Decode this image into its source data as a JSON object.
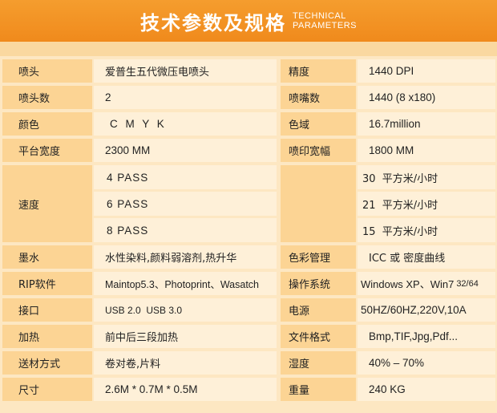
{
  "header": {
    "title_cn": "技术参数及规格",
    "title_en_line1": "TECHNICAL",
    "title_en_line2": "PARAMETERS"
  },
  "rows": {
    "r1": {
      "left_label": "喷头",
      "left_value": "爱普生五代微压电喷头",
      "right_label": "精度",
      "right_value": "1440 DPI"
    },
    "r2": {
      "left_label": "喷头数",
      "left_value": "2",
      "right_label": "喷嘴数",
      "right_value": "1440 (8 x180)"
    },
    "r3": {
      "left_label": "颜色",
      "left_value": "C M Y K",
      "right_label": "色域",
      "right_value": "16.7million"
    },
    "r4": {
      "left_label": "平台宽度",
      "left_value": "2300 MM",
      "right_label": "喷印宽幅",
      "right_value": "1800 MM"
    },
    "speed": {
      "label": "速度",
      "passes": [
        "4 PASS",
        "6 PASS",
        "8 PASS"
      ],
      "rates": [
        "30  平方米/小时",
        "21  平方米/小时",
        "15  平方米/小时"
      ]
    },
    "r8": {
      "left_label": "墨水",
      "left_value": "水性染料,颜料弱溶剂,热升华",
      "right_label": "色彩管理",
      "right_value": "ICC 或 密度曲线"
    },
    "r9": {
      "left_label": "RIP软件",
      "left_value": "Maintop5.3、Photoprint、Wasatch",
      "right_label": "操作系统",
      "right_value": "Windows XP、Win7",
      "right_value_suffix": "32/64"
    },
    "r10": {
      "left_label": "接口",
      "left_value": "USB 2.0  USB 3.0",
      "right_label": "电源",
      "right_value": "50HZ/60HZ,220V,10A"
    },
    "r11": {
      "left_label": "加热",
      "left_value": "前中后三段加热",
      "right_label": "文件格式",
      "right_value": "Bmp,TIF,Jpg,Pdf..."
    },
    "r12": {
      "left_label": "送材方式",
      "left_value": "卷对卷,片料",
      "right_label": "湿度",
      "right_value": "40% – 70%"
    },
    "r13": {
      "left_label": "尺寸",
      "left_value": "2.6M * 0.7M * 0.5M",
      "right_label": "重量",
      "right_value": "240 KG"
    }
  },
  "colors": {
    "header": "#f08a1c",
    "label_cell": "#fcd494",
    "value_cell": "#fef0d8",
    "background": "#fde7c2"
  }
}
